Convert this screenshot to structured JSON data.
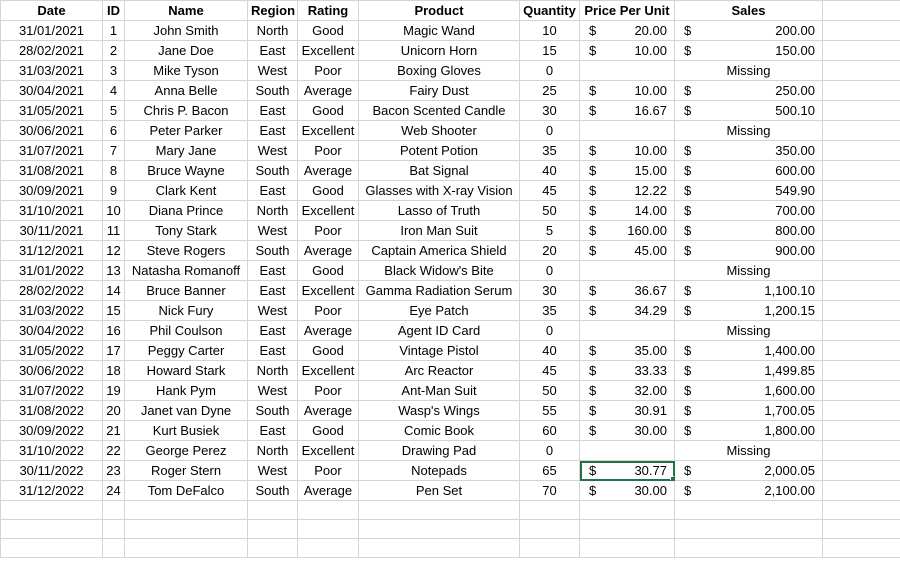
{
  "headers": {
    "date": "Date",
    "id": "ID",
    "name": "Name",
    "region": "Region",
    "rating": "Rating",
    "product": "Product",
    "quantity": "Quantity",
    "price_per_unit": "Price Per Unit",
    "sales": "Sales"
  },
  "currency_symbol": "$",
  "missing_label": "Missing",
  "rows": [
    {
      "date": "31/01/2021",
      "id": "1",
      "name": "John Smith",
      "region": "North",
      "rating": "Good",
      "product": "Magic Wand",
      "quantity": "10",
      "price": "20.00",
      "sales": "200.00"
    },
    {
      "date": "28/02/2021",
      "id": "2",
      "name": "Jane Doe",
      "region": "East",
      "rating": "Excellent",
      "product": "Unicorn Horn",
      "quantity": "15",
      "price": "10.00",
      "sales": "150.00"
    },
    {
      "date": "31/03/2021",
      "id": "3",
      "name": "Mike Tyson",
      "region": "West",
      "rating": "Poor",
      "product": "Boxing Gloves",
      "quantity": "0",
      "price": "",
      "sales": "Missing"
    },
    {
      "date": "30/04/2021",
      "id": "4",
      "name": "Anna Belle",
      "region": "South",
      "rating": "Average",
      "product": "Fairy Dust",
      "quantity": "25",
      "price": "10.00",
      "sales": "250.00"
    },
    {
      "date": "31/05/2021",
      "id": "5",
      "name": "Chris P. Bacon",
      "region": "East",
      "rating": "Good",
      "product": "Bacon Scented Candle",
      "quantity": "30",
      "price": "16.67",
      "sales": "500.10"
    },
    {
      "date": "30/06/2021",
      "id": "6",
      "name": "Peter Parker",
      "region": "East",
      "rating": "Excellent",
      "product": "Web Shooter",
      "quantity": "0",
      "price": "",
      "sales": "Missing"
    },
    {
      "date": "31/07/2021",
      "id": "7",
      "name": "Mary Jane",
      "region": "West",
      "rating": "Poor",
      "product": "Potent Potion",
      "quantity": "35",
      "price": "10.00",
      "sales": "350.00"
    },
    {
      "date": "31/08/2021",
      "id": "8",
      "name": "Bruce Wayne",
      "region": "South",
      "rating": "Average",
      "product": "Bat Signal",
      "quantity": "40",
      "price": "15.00",
      "sales": "600.00"
    },
    {
      "date": "30/09/2021",
      "id": "9",
      "name": "Clark Kent",
      "region": "East",
      "rating": "Good",
      "product": "Glasses with X-ray Vision",
      "quantity": "45",
      "price": "12.22",
      "sales": "549.90"
    },
    {
      "date": "31/10/2021",
      "id": "10",
      "name": "Diana Prince",
      "region": "North",
      "rating": "Excellent",
      "product": "Lasso of Truth",
      "quantity": "50",
      "price": "14.00",
      "sales": "700.00"
    },
    {
      "date": "30/11/2021",
      "id": "11",
      "name": "Tony Stark",
      "region": "West",
      "rating": "Poor",
      "product": "Iron Man Suit",
      "quantity": "5",
      "price": "160.00",
      "sales": "800.00"
    },
    {
      "date": "31/12/2021",
      "id": "12",
      "name": "Steve Rogers",
      "region": "South",
      "rating": "Average",
      "product": "Captain America Shield",
      "quantity": "20",
      "price": "45.00",
      "sales": "900.00"
    },
    {
      "date": "31/01/2022",
      "id": "13",
      "name": "Natasha Romanoff",
      "region": "East",
      "rating": "Good",
      "product": "Black Widow's Bite",
      "quantity": "0",
      "price": "",
      "sales": "Missing"
    },
    {
      "date": "28/02/2022",
      "id": "14",
      "name": "Bruce Banner",
      "region": "East",
      "rating": "Excellent",
      "product": "Gamma Radiation Serum",
      "quantity": "30",
      "price": "36.67",
      "sales": "1,100.10"
    },
    {
      "date": "31/03/2022",
      "id": "15",
      "name": "Nick Fury",
      "region": "West",
      "rating": "Poor",
      "product": "Eye Patch",
      "quantity": "35",
      "price": "34.29",
      "sales": "1,200.15"
    },
    {
      "date": "30/04/2022",
      "id": "16",
      "name": "Phil Coulson",
      "region": "East",
      "rating": "Average",
      "product": "Agent ID Card",
      "quantity": "0",
      "price": "",
      "sales": "Missing"
    },
    {
      "date": "31/05/2022",
      "id": "17",
      "name": "Peggy Carter",
      "region": "East",
      "rating": "Good",
      "product": "Vintage Pistol",
      "quantity": "40",
      "price": "35.00",
      "sales": "1,400.00"
    },
    {
      "date": "30/06/2022",
      "id": "18",
      "name": "Howard Stark",
      "region": "North",
      "rating": "Excellent",
      "product": "Arc Reactor",
      "quantity": "45",
      "price": "33.33",
      "sales": "1,499.85"
    },
    {
      "date": "31/07/2022",
      "id": "19",
      "name": "Hank Pym",
      "region": "West",
      "rating": "Poor",
      "product": "Ant-Man Suit",
      "quantity": "50",
      "price": "32.00",
      "sales": "1,600.00"
    },
    {
      "date": "31/08/2022",
      "id": "20",
      "name": "Janet van Dyne",
      "region": "South",
      "rating": "Average",
      "product": "Wasp's Wings",
      "quantity": "55",
      "price": "30.91",
      "sales": "1,700.05"
    },
    {
      "date": "30/09/2022",
      "id": "21",
      "name": "Kurt Busiek",
      "region": "East",
      "rating": "Good",
      "product": "Comic Book",
      "quantity": "60",
      "price": "30.00",
      "sales": "1,800.00"
    },
    {
      "date": "31/10/2022",
      "id": "22",
      "name": "George Perez",
      "region": "North",
      "rating": "Excellent",
      "product": "Drawing Pad",
      "quantity": "0",
      "price": "",
      "sales": "Missing"
    },
    {
      "date": "30/11/2022",
      "id": "23",
      "name": "Roger Stern",
      "region": "West",
      "rating": "Poor",
      "product": "Notepads",
      "quantity": "65",
      "price": "30.77",
      "sales": "2,000.05",
      "selected_price": true
    },
    {
      "date": "31/12/2022",
      "id": "24",
      "name": "Tom DeFalco",
      "region": "South",
      "rating": "Average",
      "product": "Pen Set",
      "quantity": "70",
      "price": "30.00",
      "sales": "2,100.00"
    }
  ],
  "empty_rows": 3
}
